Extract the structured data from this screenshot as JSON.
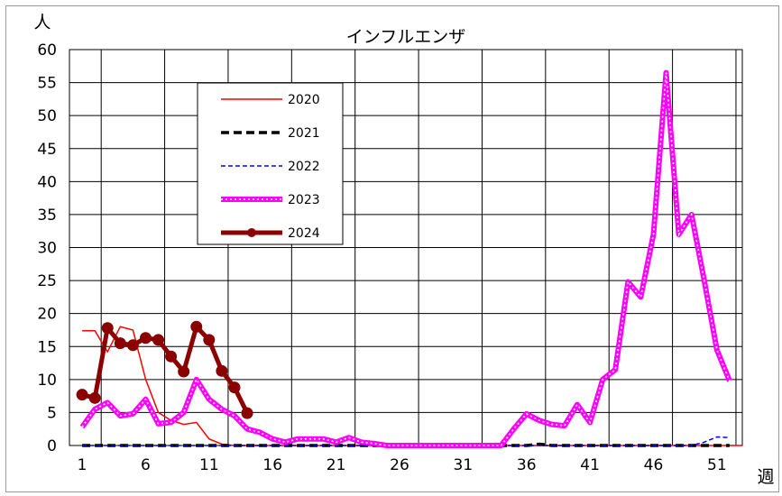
{
  "chart_data": {
    "type": "line",
    "title": "インフルエンザ",
    "ylabel": "人",
    "xlabel": "週",
    "ylim": [
      0,
      60
    ],
    "xlim": [
      0,
      53
    ],
    "yticks": [
      0,
      5,
      10,
      15,
      20,
      25,
      30,
      35,
      40,
      45,
      50,
      55,
      60
    ],
    "xticks": [
      1,
      6,
      11,
      16,
      21,
      26,
      31,
      36,
      41,
      46,
      51
    ],
    "grid": true,
    "legend_position": "upper-left",
    "series": [
      {
        "name": "2020",
        "color": "#ff0000",
        "style": "thin-solid",
        "x": [
          1,
          2,
          3,
          4,
          5,
          6,
          7,
          8,
          9,
          10,
          11,
          12,
          13,
          14,
          15,
          16,
          17,
          18,
          19,
          20,
          21,
          22,
          23,
          24,
          25,
          26,
          27,
          28,
          29,
          30,
          31,
          32,
          33,
          34,
          35,
          36,
          37,
          38,
          39,
          40,
          41,
          42,
          43,
          44,
          45,
          46,
          47,
          48,
          49,
          50,
          51,
          52,
          53
        ],
        "values": [
          17.4,
          17.4,
          14.2,
          18.0,
          17.5,
          10.0,
          5.0,
          3.8,
          3.2,
          3.5,
          1.0,
          0.2,
          0,
          0,
          0,
          0,
          0,
          0,
          0,
          0,
          0,
          0,
          0,
          0,
          0,
          0,
          0,
          0,
          0,
          0,
          0,
          0,
          0,
          0,
          0,
          0,
          0,
          0,
          0,
          0,
          0,
          0,
          0,
          0,
          0,
          0,
          0,
          0,
          0,
          0,
          0,
          0,
          0
        ]
      },
      {
        "name": "2021",
        "color": "#000000",
        "style": "thick-dashed",
        "x": [
          1,
          2,
          3,
          4,
          5,
          6,
          7,
          8,
          9,
          10,
          11,
          12,
          13,
          14,
          15,
          16,
          17,
          18,
          19,
          20,
          21,
          22,
          23,
          24,
          25,
          26,
          27,
          28,
          29,
          30,
          31,
          32,
          33,
          34,
          35,
          36,
          37,
          38,
          39,
          40,
          41,
          42,
          43,
          44,
          45,
          46,
          47,
          48,
          49,
          50,
          51,
          52
        ],
        "values": [
          0,
          0,
          0,
          0,
          0,
          0,
          0,
          0,
          0,
          0,
          0,
          0,
          0,
          0,
          0,
          0,
          0,
          0,
          0,
          0,
          0,
          0,
          0,
          0,
          0,
          0,
          0,
          0,
          0,
          0,
          0,
          0,
          0,
          0,
          0,
          0,
          0.2,
          0,
          0,
          0,
          0,
          0,
          0,
          0,
          0,
          0,
          0,
          0,
          0,
          0,
          0,
          0
        ]
      },
      {
        "name": "2022",
        "color": "#0000ff",
        "style": "thin-dashed",
        "x": [
          1,
          2,
          3,
          4,
          5,
          6,
          7,
          8,
          9,
          10,
          11,
          12,
          13,
          14,
          15,
          16,
          17,
          18,
          19,
          20,
          21,
          22,
          23,
          24,
          25,
          26,
          27,
          28,
          29,
          30,
          31,
          32,
          33,
          34,
          35,
          36,
          37,
          38,
          39,
          40,
          41,
          42,
          43,
          44,
          45,
          46,
          47,
          48,
          49,
          50,
          51,
          52
        ],
        "values": [
          0,
          0,
          0,
          0,
          0,
          0,
          0,
          0,
          0,
          0,
          0,
          0,
          0,
          0,
          0,
          0,
          0,
          0,
          0,
          0,
          0,
          0,
          0,
          0,
          0,
          0,
          0,
          0,
          0,
          0,
          0,
          0,
          0,
          0,
          0,
          0,
          0,
          0,
          0,
          0,
          0,
          0,
          0,
          0,
          0,
          0,
          0,
          0,
          0,
          0.5,
          1.3,
          1.2
        ]
      },
      {
        "name": "2023",
        "color": "#ff00ff",
        "style": "thick-dotted-white",
        "x": [
          1,
          2,
          3,
          4,
          5,
          6,
          7,
          8,
          9,
          10,
          11,
          12,
          13,
          14,
          15,
          16,
          17,
          18,
          19,
          20,
          21,
          22,
          23,
          24,
          25,
          26,
          27,
          28,
          29,
          30,
          31,
          32,
          33,
          34,
          35,
          36,
          37,
          38,
          39,
          40,
          41,
          42,
          43,
          44,
          45,
          46,
          47,
          48,
          49,
          50,
          51,
          52
        ],
        "values": [
          2.8,
          5.5,
          6.5,
          4.5,
          4.8,
          7.0,
          3.3,
          3.5,
          5.0,
          10.0,
          7.0,
          5.5,
          4.5,
          2.5,
          2.0,
          1.0,
          0.5,
          1.0,
          1.0,
          1.0,
          0.5,
          1.2,
          0.5,
          0.3,
          0,
          0,
          0,
          0,
          0,
          0,
          0,
          0,
          0,
          0,
          2.5,
          4.8,
          3.8,
          3.2,
          3.0,
          6.2,
          3.5,
          10.0,
          11.5,
          24.8,
          22.5,
          32.0,
          56.5,
          32.0,
          35.0,
          25.0,
          14.5,
          9.8
        ]
      },
      {
        "name": "2024",
        "color": "#8b0000",
        "style": "thick-solid-markers",
        "x": [
          1,
          2,
          3,
          4,
          5,
          6,
          7,
          8,
          9,
          10,
          11,
          12,
          13,
          14
        ],
        "values": [
          7.7,
          7.2,
          17.8,
          15.5,
          15.2,
          16.3,
          16.0,
          13.5,
          11.2,
          18.0,
          16.0,
          11.3,
          8.8,
          4.9
        ]
      }
    ]
  }
}
